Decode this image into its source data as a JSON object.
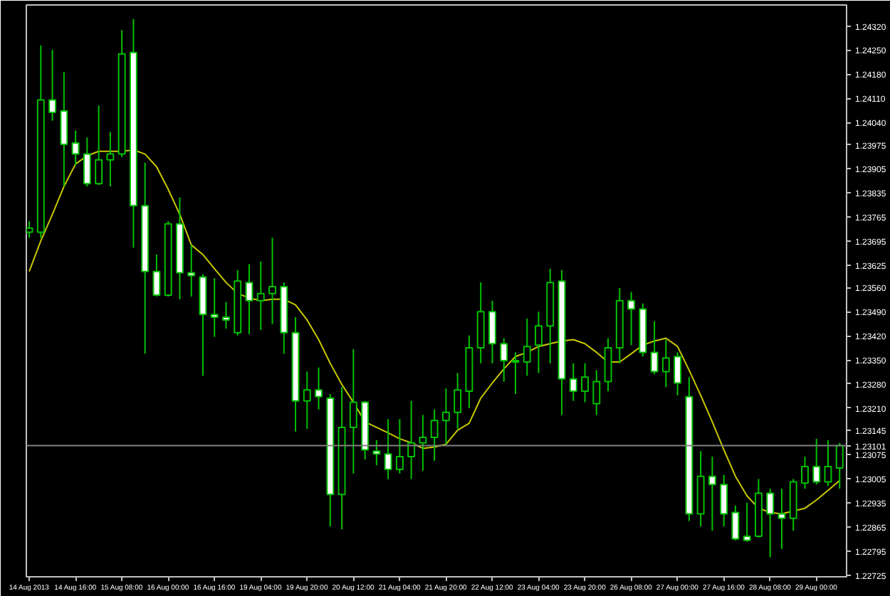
{
  "chart_data": {
    "type": "candlestick",
    "categories": [
      "14 Aug 2013",
      null,
      null,
      null,
      "14 Aug 16:00",
      null,
      null,
      null,
      "15 Aug 08:00",
      null,
      null,
      null,
      "16 Aug 00:00",
      null,
      null,
      null,
      "16 Aug 16:00",
      null,
      null,
      null,
      "19 Aug 04:00",
      null,
      null,
      null,
      "19 Aug 20:00",
      null,
      null,
      null,
      "20 Aug 12:00",
      null,
      null,
      null,
      "21 Aug 04:00",
      null,
      null,
      null,
      "21 Aug 20:00",
      null,
      null,
      null,
      "22 Aug 12:00",
      null,
      null,
      null,
      "23 Aug 04:00",
      null,
      null,
      null,
      "23 Aug 20:00",
      null,
      null,
      null,
      "26 Aug 08:00",
      null,
      null,
      null,
      "27 Aug 00:00",
      null,
      null,
      null,
      "27 Aug 16:00",
      null,
      null,
      null,
      "28 Aug 08:00",
      null,
      null,
      null,
      "29 Aug 00:00",
      null,
      null
    ],
    "color": "#00c000",
    "ohlc": [
      [
        1.23721,
        1.23753,
        1.23705,
        1.23733
      ],
      [
        1.23721,
        1.24263,
        1.23705,
        1.24105
      ],
      [
        1.24105,
        1.24251,
        1.24045,
        1.24069
      ],
      [
        1.24073,
        1.24186,
        1.23854,
        1.23976
      ],
      [
        1.2398,
        1.24016,
        1.23915,
        1.23948
      ],
      [
        1.23948,
        1.23996,
        1.23854,
        1.23862
      ],
      [
        1.23862,
        1.24089,
        1.23858,
        1.23931
      ],
      [
        1.23931,
        1.24012,
        1.23854,
        1.23948
      ],
      [
        1.23948,
        1.24308,
        1.23939,
        1.24239
      ],
      [
        1.24243,
        1.2434,
        1.23676,
        1.23798
      ],
      [
        1.23798,
        1.23923,
        1.23368,
        1.23607
      ],
      [
        1.23607,
        1.23656,
        1.23534,
        1.23538
      ],
      [
        1.23538,
        1.23753,
        1.23534,
        1.23745
      ],
      [
        1.23745,
        1.23822,
        1.23526,
        1.23603
      ],
      [
        1.23603,
        1.23684,
        1.23534,
        1.23595
      ],
      [
        1.23591,
        1.23599,
        1.23304,
        1.23482
      ],
      [
        1.23482,
        1.23587,
        1.23417,
        1.23474
      ],
      [
        1.23474,
        1.23518,
        1.23441,
        1.23466
      ],
      [
        1.23429,
        1.23611,
        1.23421,
        1.23579
      ],
      [
        1.23575,
        1.23628,
        1.23425,
        1.23522
      ],
      [
        1.23522,
        1.23636,
        1.23437,
        1.23543
      ],
      [
        1.23543,
        1.23705,
        1.23454,
        1.23563
      ],
      [
        1.23563,
        1.23575,
        1.23368,
        1.23429
      ],
      [
        1.23429,
        1.23474,
        1.23142,
        1.23231
      ],
      [
        1.23231,
        1.23316,
        1.2315,
        1.23263
      ],
      [
        1.23263,
        1.23328,
        1.23206,
        1.23243
      ],
      [
        1.23239,
        1.23251,
        1.22866,
        1.22959
      ],
      [
        1.22959,
        1.23271,
        1.22858,
        1.23154
      ],
      [
        1.23154,
        1.23381,
        1.2302,
        1.23227
      ],
      [
        1.23227,
        1.23231,
        1.23061,
        1.23089
      ],
      [
        1.23085,
        1.23117,
        1.23044,
        1.23077
      ],
      [
        1.23077,
        1.23178,
        1.23004,
        1.23032
      ],
      [
        1.23032,
        1.23178,
        1.2302,
        1.23069
      ],
      [
        1.23069,
        1.23231,
        1.23004,
        1.23109
      ],
      [
        1.23109,
        1.2319,
        1.23028,
        1.23125
      ],
      [
        1.23125,
        1.23206,
        1.23057,
        1.23174
      ],
      [
        1.23174,
        1.23267,
        1.23105,
        1.23198
      ],
      [
        1.23198,
        1.23312,
        1.2315,
        1.23263
      ],
      [
        1.23259,
        1.23421,
        1.2321,
        1.23385
      ],
      [
        1.23385,
        1.23575,
        1.2334,
        1.2349
      ],
      [
        1.2349,
        1.23522,
        1.2334,
        1.23397
      ],
      [
        1.23397,
        1.23413,
        1.23287,
        1.23348
      ],
      [
        1.23348,
        1.23372,
        1.23251,
        1.23344
      ],
      [
        1.23344,
        1.2347,
        1.23304,
        1.23389
      ],
      [
        1.23393,
        1.2349,
        1.23312,
        1.23449
      ],
      [
        1.23449,
        1.23615,
        1.2334,
        1.23575
      ],
      [
        1.23579,
        1.23611,
        1.2319,
        1.23295
      ],
      [
        1.23295,
        1.2334,
        1.23231,
        1.23259
      ],
      [
        1.23259,
        1.2334,
        1.23227,
        1.233
      ],
      [
        1.23223,
        1.2332,
        1.2319,
        1.23287
      ],
      [
        1.23287,
        1.23413,
        1.23259,
        1.23385
      ],
      [
        1.23385,
        1.23559,
        1.2334,
        1.23522
      ],
      [
        1.23522,
        1.23547,
        1.23393,
        1.23498
      ],
      [
        1.23498,
        1.23514,
        1.2336,
        1.23372
      ],
      [
        1.23372,
        1.23462,
        1.23308,
        1.23316
      ],
      [
        1.23316,
        1.23409,
        1.23271,
        1.23356
      ],
      [
        1.2336,
        1.23372,
        1.23247,
        1.23283
      ],
      [
        1.23243,
        1.233,
        1.22882,
        1.22903
      ],
      [
        1.22903,
        1.23085,
        1.22866,
        1.23012
      ],
      [
        1.23012,
        1.23069,
        1.22854,
        1.22988
      ],
      [
        1.22988,
        1.23016,
        1.22866,
        1.22903
      ],
      [
        1.22907,
        1.22927,
        1.22826,
        1.2283
      ],
      [
        1.22838,
        1.22935,
        1.22822,
        1.22826
      ],
      [
        1.22838,
        1.23004,
        1.22834,
        1.22963
      ],
      [
        1.22963,
        1.22976,
        1.22777,
        1.22903
      ],
      [
        1.22903,
        1.22976,
        1.22801,
        1.2289
      ],
      [
        1.2289,
        1.23004,
        1.22854,
        1.22996
      ],
      [
        1.22992,
        1.23069,
        1.22976,
        1.2304
      ],
      [
        1.2304,
        1.23121,
        1.22988,
        1.22996
      ],
      [
        1.22996,
        1.23117,
        1.22984,
        1.2304
      ],
      [
        1.23036,
        1.23109,
        1.22976,
        1.23101
      ]
    ],
    "series": [
      {
        "type": "line",
        "color": "#c8c800",
        "values": [
          1.23607,
          1.23696,
          1.23773,
          1.23854,
          1.23919,
          1.23943,
          1.23956,
          1.23956,
          1.23956,
          1.2396,
          1.23948,
          1.23911,
          1.23846,
          1.23773,
          1.23684,
          1.23656,
          1.23615,
          1.23575,
          1.23543,
          1.2353,
          1.23522,
          1.23526,
          1.23526,
          1.2351,
          1.23466,
          1.23409,
          1.2334,
          1.23279,
          1.23227,
          1.2317,
          1.23154,
          1.23138,
          1.23121,
          1.23109,
          1.23093,
          1.23097,
          1.23105,
          1.23146,
          1.23166,
          1.23239,
          1.23283,
          1.23324,
          1.2336,
          1.23372,
          1.23389,
          1.23397,
          1.23405,
          1.23409,
          1.23397,
          1.23372,
          1.23344,
          1.23344,
          1.23368,
          1.23393,
          1.23405,
          1.23413,
          1.23389,
          1.2332,
          1.23247,
          1.2317,
          1.23089,
          1.23012,
          1.22955,
          1.22919,
          1.22907,
          1.22903,
          1.22911,
          1.22919,
          1.22943,
          1.22971,
          1.23
        ]
      }
    ],
    "ylim": [
      1.2272,
      1.24381
    ],
    "yticks": [
      {
        "value": 1.2432,
        "label": "1.24320"
      },
      {
        "value": 1.2425,
        "label": "1.24250"
      },
      {
        "value": 1.2418,
        "label": "1.24180"
      },
      {
        "value": 1.2411,
        "label": "1.24110"
      },
      {
        "value": 1.2404,
        "label": "1.24040"
      },
      {
        "value": 1.23975,
        "label": "1.23975"
      },
      {
        "value": 1.23905,
        "label": "1.23905"
      },
      {
        "value": 1.23835,
        "label": "1.23835"
      },
      {
        "value": 1.23765,
        "label": "1.23765"
      },
      {
        "value": 1.23695,
        "label": "1.23695"
      },
      {
        "value": 1.23625,
        "label": "1.23625"
      },
      {
        "value": 1.2356,
        "label": "1.23560"
      },
      {
        "value": 1.2349,
        "label": "1.23490"
      },
      {
        "value": 1.2342,
        "label": "1.23420"
      },
      {
        "value": 1.2335,
        "label": "1.23350"
      },
      {
        "value": 1.2328,
        "label": "1.23280"
      },
      {
        "value": 1.2321,
        "label": "1.23210"
      },
      {
        "value": 1.23145,
        "label": "1.23145"
      },
      {
        "value": 1.23075,
        "label": "1.23075"
      },
      {
        "value": 1.23005,
        "label": "1.23005"
      },
      {
        "value": 1.22935,
        "label": "1.22935"
      },
      {
        "value": 1.22865,
        "label": "1.22865"
      },
      {
        "value": 1.22795,
        "label": "1.22795"
      },
      {
        "value": 1.22725,
        "label": "1.22725"
      }
    ],
    "ref_lines": [
      {
        "axis": "y",
        "value": 1.23101,
        "label": "1.23101",
        "color": "#808080"
      }
    ],
    "grid": false
  }
}
